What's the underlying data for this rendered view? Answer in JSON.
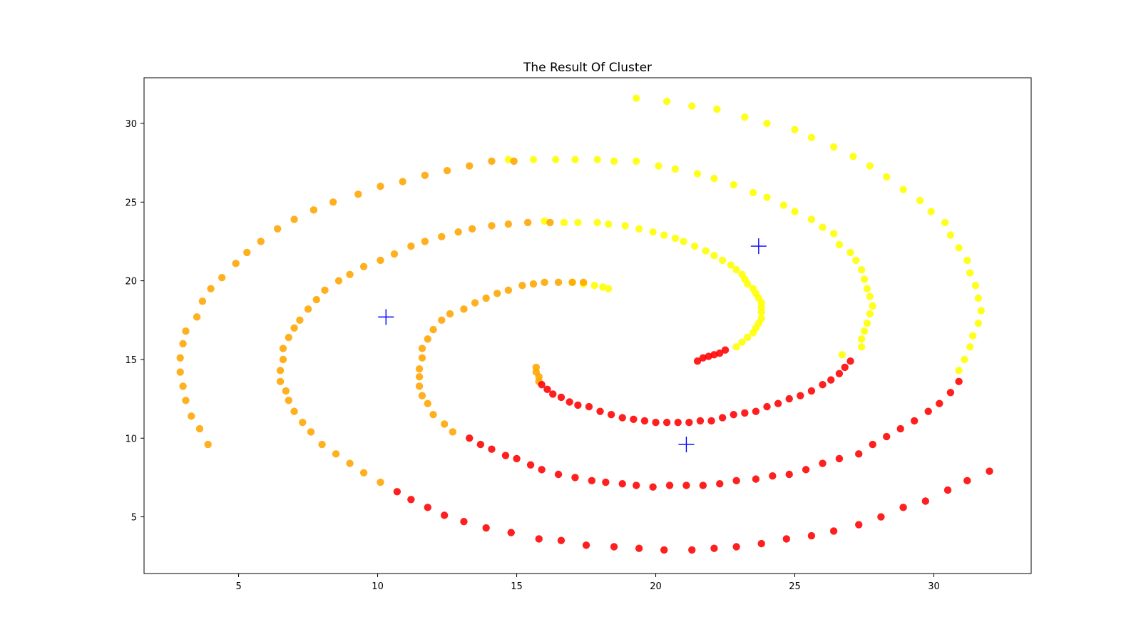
{
  "chart_data": {
    "type": "scatter",
    "title": "The Result Of Cluster",
    "xlabel": "",
    "ylabel": "",
    "xlim": [
      1.6,
      33.5
    ],
    "ylim": [
      1.4,
      32.9
    ],
    "xticks": [
      5,
      10,
      15,
      20,
      25,
      30
    ],
    "yticks": [
      5,
      10,
      15,
      20,
      25,
      30
    ],
    "grid": false,
    "legend": "none",
    "colors": {
      "cluster_a": "#ffff00",
      "cluster_b": "#ffa500",
      "cluster_c": "#ff0000",
      "centroid": "#0000ff"
    },
    "series": [
      {
        "color": "#ffff00",
        "points": [
          [
            19.3,
            31.6
          ],
          [
            20.4,
            31.4
          ],
          [
            21.3,
            31.1
          ],
          [
            22.2,
            30.9
          ],
          [
            23.2,
            30.4
          ],
          [
            24.0,
            30.0
          ],
          [
            25.0,
            29.6
          ],
          [
            25.6,
            29.1
          ],
          [
            26.4,
            28.5
          ],
          [
            27.1,
            27.9
          ],
          [
            27.7,
            27.3
          ],
          [
            28.3,
            26.6
          ],
          [
            28.9,
            25.8
          ],
          [
            29.5,
            25.1
          ],
          [
            29.9,
            24.4
          ],
          [
            30.4,
            23.7
          ],
          [
            30.6,
            22.9
          ],
          [
            30.9,
            22.1
          ],
          [
            31.2,
            21.3
          ],
          [
            31.3,
            20.5
          ],
          [
            31.5,
            19.7
          ],
          [
            31.6,
            18.9
          ],
          [
            31.7,
            18.1
          ],
          [
            31.6,
            17.3
          ],
          [
            31.4,
            16.5
          ],
          [
            31.3,
            15.8
          ],
          [
            31.1,
            15.0
          ],
          [
            30.9,
            14.3
          ],
          [
            14.7,
            27.7
          ],
          [
            15.6,
            27.7
          ],
          [
            16.4,
            27.7
          ],
          [
            17.1,
            27.7
          ],
          [
            17.9,
            27.7
          ],
          [
            18.5,
            27.6
          ],
          [
            19.3,
            27.6
          ],
          [
            20.1,
            27.3
          ],
          [
            20.7,
            27.1
          ],
          [
            21.5,
            26.8
          ],
          [
            22.1,
            26.5
          ],
          [
            22.8,
            26.1
          ],
          [
            23.5,
            25.6
          ],
          [
            24.0,
            25.3
          ],
          [
            24.6,
            24.8
          ],
          [
            25.0,
            24.4
          ],
          [
            25.6,
            23.9
          ],
          [
            26.0,
            23.4
          ],
          [
            26.4,
            23.0
          ],
          [
            26.6,
            22.3
          ],
          [
            27.0,
            21.8
          ],
          [
            27.2,
            21.3
          ],
          [
            27.4,
            20.7
          ],
          [
            27.5,
            20.1
          ],
          [
            27.6,
            19.5
          ],
          [
            27.7,
            19.0
          ],
          [
            27.8,
            18.4
          ],
          [
            27.7,
            17.9
          ],
          [
            27.6,
            17.3
          ],
          [
            27.5,
            16.8
          ],
          [
            27.4,
            16.3
          ],
          [
            27.4,
            15.8
          ],
          [
            26.7,
            15.3
          ],
          [
            16.0,
            23.8
          ],
          [
            16.7,
            23.7
          ],
          [
            17.2,
            23.7
          ],
          [
            17.9,
            23.7
          ],
          [
            18.3,
            23.6
          ],
          [
            18.9,
            23.5
          ],
          [
            19.4,
            23.3
          ],
          [
            19.9,
            23.1
          ],
          [
            20.3,
            22.9
          ],
          [
            20.7,
            22.7
          ],
          [
            21.0,
            22.5
          ],
          [
            21.4,
            22.2
          ],
          [
            21.8,
            21.9
          ],
          [
            22.1,
            21.6
          ],
          [
            22.4,
            21.3
          ],
          [
            22.7,
            21.0
          ],
          [
            22.9,
            20.7
          ],
          [
            23.1,
            20.4
          ],
          [
            23.2,
            20.1
          ],
          [
            23.3,
            19.8
          ],
          [
            23.5,
            19.5
          ],
          [
            23.6,
            19.2
          ],
          [
            23.7,
            18.9
          ],
          [
            23.8,
            18.6
          ],
          [
            23.8,
            18.3
          ],
          [
            23.8,
            18.0
          ],
          [
            23.8,
            17.6
          ],
          [
            23.7,
            17.3
          ],
          [
            23.6,
            17.0
          ],
          [
            23.5,
            16.7
          ],
          [
            23.3,
            16.4
          ],
          [
            23.1,
            16.1
          ],
          [
            22.9,
            15.8
          ],
          [
            17.0,
            19.9
          ],
          [
            17.4,
            19.8
          ],
          [
            17.8,
            19.7
          ],
          [
            18.1,
            19.6
          ],
          [
            18.3,
            19.5
          ]
        ]
      },
      {
        "color": "#ffa500",
        "points": [
          [
            3.9,
            9.6
          ],
          [
            3.6,
            10.6
          ],
          [
            3.3,
            11.4
          ],
          [
            3.1,
            12.4
          ],
          [
            3.0,
            13.3
          ],
          [
            2.9,
            14.2
          ],
          [
            2.9,
            15.1
          ],
          [
            3.0,
            16.0
          ],
          [
            3.1,
            16.8
          ],
          [
            3.5,
            17.7
          ],
          [
            3.7,
            18.7
          ],
          [
            4.0,
            19.5
          ],
          [
            4.4,
            20.2
          ],
          [
            4.9,
            21.1
          ],
          [
            5.3,
            21.8
          ],
          [
            5.8,
            22.5
          ],
          [
            6.4,
            23.3
          ],
          [
            7.0,
            23.9
          ],
          [
            7.7,
            24.5
          ],
          [
            8.4,
            25.0
          ],
          [
            9.3,
            25.5
          ],
          [
            10.1,
            26.0
          ],
          [
            10.9,
            26.3
          ],
          [
            11.7,
            26.7
          ],
          [
            12.5,
            27.0
          ],
          [
            13.3,
            27.3
          ],
          [
            14.1,
            27.6
          ],
          [
            14.9,
            27.6
          ],
          [
            10.1,
            7.2
          ],
          [
            9.5,
            7.8
          ],
          [
            9.0,
            8.4
          ],
          [
            8.5,
            9.0
          ],
          [
            8.0,
            9.6
          ],
          [
            7.6,
            10.4
          ],
          [
            7.3,
            11.0
          ],
          [
            7.0,
            11.7
          ],
          [
            6.8,
            12.4
          ],
          [
            6.7,
            13.0
          ],
          [
            6.5,
            13.6
          ],
          [
            6.5,
            14.3
          ],
          [
            6.6,
            15.0
          ],
          [
            6.6,
            15.7
          ],
          [
            6.8,
            16.4
          ],
          [
            7.0,
            17.0
          ],
          [
            7.2,
            17.5
          ],
          [
            7.5,
            18.2
          ],
          [
            7.8,
            18.8
          ],
          [
            8.1,
            19.4
          ],
          [
            8.6,
            20.0
          ],
          [
            9.0,
            20.4
          ],
          [
            9.5,
            20.9
          ],
          [
            10.1,
            21.3
          ],
          [
            10.6,
            21.7
          ],
          [
            11.2,
            22.2
          ],
          [
            11.7,
            22.5
          ],
          [
            12.3,
            22.8
          ],
          [
            12.9,
            23.1
          ],
          [
            13.4,
            23.3
          ],
          [
            14.1,
            23.5
          ],
          [
            14.7,
            23.6
          ],
          [
            15.4,
            23.7
          ],
          [
            16.2,
            23.7
          ],
          [
            12.7,
            10.4
          ],
          [
            12.4,
            10.9
          ],
          [
            12.0,
            11.5
          ],
          [
            11.8,
            12.2
          ],
          [
            11.6,
            12.7
          ],
          [
            11.5,
            13.3
          ],
          [
            11.5,
            13.9
          ],
          [
            11.5,
            14.4
          ],
          [
            11.6,
            15.1
          ],
          [
            11.6,
            15.7
          ],
          [
            11.8,
            16.3
          ],
          [
            12.0,
            16.9
          ],
          [
            12.3,
            17.5
          ],
          [
            12.6,
            17.9
          ],
          [
            13.1,
            18.2
          ],
          [
            13.5,
            18.6
          ],
          [
            13.9,
            18.9
          ],
          [
            14.3,
            19.2
          ],
          [
            14.7,
            19.4
          ],
          [
            15.2,
            19.7
          ],
          [
            15.6,
            19.8
          ],
          [
            16.0,
            19.9
          ],
          [
            16.5,
            19.9
          ],
          [
            17.0,
            19.9
          ],
          [
            17.4,
            19.9
          ],
          [
            15.7,
            14.5
          ],
          [
            15.7,
            14.2
          ],
          [
            15.8,
            13.9
          ],
          [
            15.8,
            13.6
          ]
        ]
      },
      {
        "color": "#ff0000",
        "points": [
          [
            10.7,
            6.6
          ],
          [
            11.2,
            6.1
          ],
          [
            11.8,
            5.6
          ],
          [
            12.4,
            5.1
          ],
          [
            13.1,
            4.7
          ],
          [
            13.9,
            4.3
          ],
          [
            14.8,
            4.0
          ],
          [
            15.8,
            3.6
          ],
          [
            16.6,
            3.5
          ],
          [
            17.5,
            3.2
          ],
          [
            18.5,
            3.1
          ],
          [
            19.4,
            3.0
          ],
          [
            20.3,
            2.9
          ],
          [
            21.3,
            2.9
          ],
          [
            22.1,
            3.0
          ],
          [
            22.9,
            3.1
          ],
          [
            23.8,
            3.3
          ],
          [
            24.7,
            3.6
          ],
          [
            25.6,
            3.8
          ],
          [
            26.4,
            4.1
          ],
          [
            27.3,
            4.5
          ],
          [
            28.1,
            5.0
          ],
          [
            28.9,
            5.6
          ],
          [
            29.7,
            6.0
          ],
          [
            30.5,
            6.7
          ],
          [
            31.2,
            7.3
          ],
          [
            32.0,
            7.9
          ],
          [
            13.3,
            10.0
          ],
          [
            13.7,
            9.6
          ],
          [
            14.1,
            9.3
          ],
          [
            14.6,
            8.9
          ],
          [
            15.0,
            8.7
          ],
          [
            15.5,
            8.3
          ],
          [
            15.9,
            8.0
          ],
          [
            16.5,
            7.7
          ],
          [
            17.1,
            7.5
          ],
          [
            17.7,
            7.3
          ],
          [
            18.2,
            7.2
          ],
          [
            18.8,
            7.1
          ],
          [
            19.3,
            7.0
          ],
          [
            19.9,
            6.9
          ],
          [
            20.5,
            7.0
          ],
          [
            21.1,
            7.0
          ],
          [
            21.7,
            7.0
          ],
          [
            22.3,
            7.1
          ],
          [
            22.9,
            7.3
          ],
          [
            23.6,
            7.4
          ],
          [
            24.2,
            7.6
          ],
          [
            24.8,
            7.7
          ],
          [
            25.4,
            8.0
          ],
          [
            26.0,
            8.4
          ],
          [
            26.6,
            8.7
          ],
          [
            27.3,
            9.0
          ],
          [
            27.8,
            9.6
          ],
          [
            28.3,
            10.1
          ],
          [
            28.8,
            10.6
          ],
          [
            29.3,
            11.1
          ],
          [
            29.8,
            11.7
          ],
          [
            30.2,
            12.2
          ],
          [
            30.6,
            12.9
          ],
          [
            30.9,
            13.6
          ],
          [
            15.9,
            13.4
          ],
          [
            16.1,
            13.1
          ],
          [
            16.3,
            12.8
          ],
          [
            16.6,
            12.6
          ],
          [
            16.9,
            12.3
          ],
          [
            17.2,
            12.1
          ],
          [
            17.6,
            12.0
          ],
          [
            18.0,
            11.7
          ],
          [
            18.4,
            11.5
          ],
          [
            18.8,
            11.3
          ],
          [
            19.2,
            11.2
          ],
          [
            19.6,
            11.1
          ],
          [
            20.0,
            11.0
          ],
          [
            20.4,
            11.0
          ],
          [
            20.8,
            11.0
          ],
          [
            21.2,
            11.0
          ],
          [
            21.6,
            11.1
          ],
          [
            22.0,
            11.1
          ],
          [
            22.4,
            11.3
          ],
          [
            22.8,
            11.5
          ],
          [
            23.2,
            11.6
          ],
          [
            23.6,
            11.7
          ],
          [
            24.0,
            12.0
          ],
          [
            24.4,
            12.2
          ],
          [
            24.8,
            12.5
          ],
          [
            25.2,
            12.7
          ],
          [
            25.6,
            13.0
          ],
          [
            26.0,
            13.4
          ],
          [
            26.3,
            13.7
          ],
          [
            26.6,
            14.1
          ],
          [
            26.8,
            14.5
          ],
          [
            27.0,
            14.9
          ],
          [
            21.5,
            14.9
          ],
          [
            21.7,
            15.1
          ],
          [
            21.9,
            15.2
          ],
          [
            22.1,
            15.3
          ],
          [
            22.3,
            15.4
          ],
          [
            22.5,
            15.6
          ]
        ]
      },
      {
        "color": "#0000ff",
        "marker": "plus",
        "points": [
          [
            10.3,
            17.7
          ],
          [
            23.7,
            22.2
          ],
          [
            21.1,
            9.6
          ]
        ]
      }
    ]
  }
}
